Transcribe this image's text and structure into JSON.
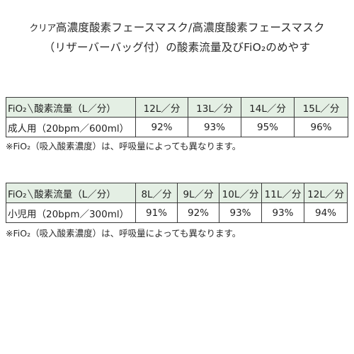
{
  "title": {
    "line1_prefix": "クリア",
    "line1": "高濃度酸素フェースマスク/高濃度酸素フェースマスク",
    "line2": "（リザーバーバッグ付）の酸素流量及びFiO₂のめやす"
  },
  "adult_table": {
    "header_label_left": "FiO₂",
    "header_diag": "╲",
    "header_label_right": "酸素流量（L／分）",
    "flows": [
      "12L／分",
      "13L／分",
      "14L／分",
      "15L／分"
    ],
    "row_label": "成人用（20bpm／600ml）",
    "values": [
      "92%",
      "93%",
      "95%",
      "96%"
    ]
  },
  "adult_note": "※FiO₂（吸入酸素濃度）は、呼吸量によっても異なります。",
  "child_table": {
    "header_label_left": "FiO₂",
    "header_diag": "╲",
    "header_label_right": "酸素流量（L／分）",
    "flows": [
      "8L／分",
      "9L／分",
      "10L／分",
      "11L／分",
      "12L／分"
    ],
    "row_label": "小児用（20bpm／300ml）",
    "values": [
      "91%",
      "92%",
      "93%",
      "93%",
      "94%"
    ]
  },
  "child_note": "※FiO₂（吸入酸素濃度）は、呼吸量によっても異なります。"
}
